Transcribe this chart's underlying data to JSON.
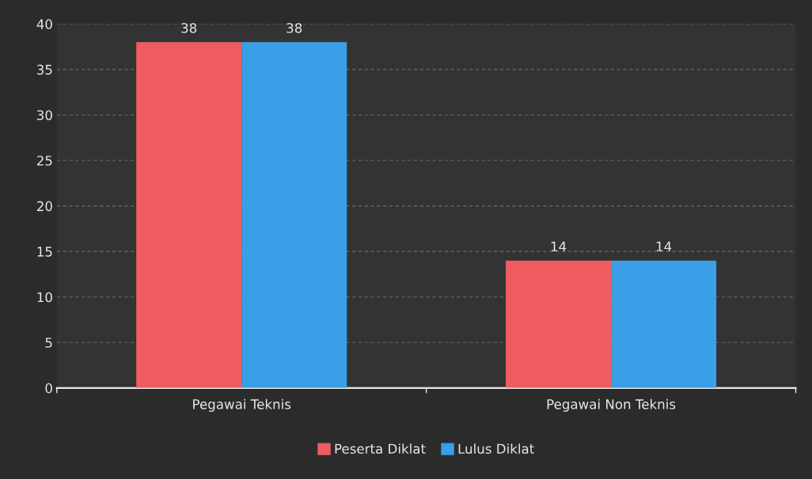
{
  "chart_data": {
    "type": "bar",
    "categories": [
      "Pegawai Teknis",
      "Pegawai Non Teknis"
    ],
    "series": [
      {
        "name": "Peserta Diklat",
        "color": "#ee5c62",
        "values": [
          38,
          14
        ]
      },
      {
        "name": "Lulus Diklat",
        "color": "#3a9fe6",
        "values": [
          38,
          14
        ]
      }
    ],
    "ylim": [
      0,
      40
    ],
    "yticks": [
      0,
      5,
      10,
      15,
      20,
      25,
      30,
      35,
      40
    ],
    "grid": "y",
    "legend": "bottom",
    "data_labels": true
  }
}
